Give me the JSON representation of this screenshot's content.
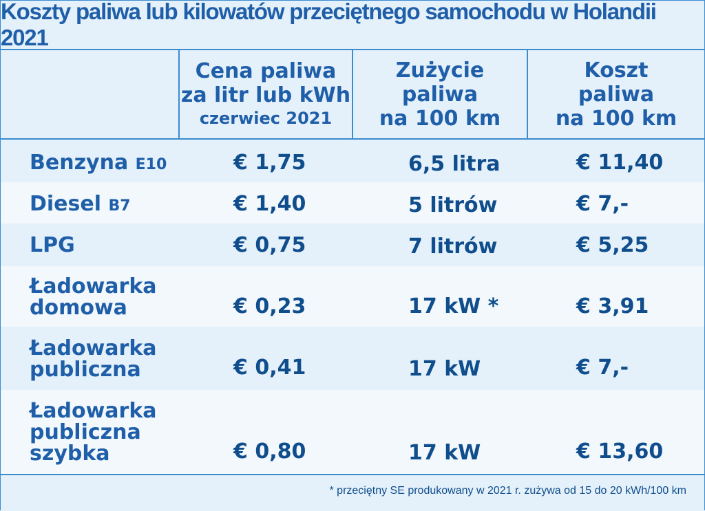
{
  "title": "Koszty paliwa lub kilowatów przeciętnego samochodu w Holandii 2021",
  "headers": {
    "price_line1": "Cena paliwa",
    "price_line2": "za litr lub kWh",
    "price_line3": "czerwiec 2021",
    "use_line1": "Zużycie",
    "use_line2": "paliwa",
    "use_line3": "na 100 km",
    "cost_line1": "Koszt",
    "cost_line2": "paliwa",
    "cost_line3": "na 100 km"
  },
  "rows": [
    {
      "label1": "Benzyna",
      "label_sub": "E10",
      "price": "€ 1,75",
      "use": "6,5 litra",
      "cost": "€ 11,40"
    },
    {
      "label1": "Diesel",
      "label_sub": "B7",
      "price": "€ 1,40",
      "use": "5 litrów",
      "cost": "€ 7,-"
    },
    {
      "label1": "LPG",
      "price": "€ 0,75",
      "use": "7 litrów",
      "cost": "€ 5,25"
    },
    {
      "label1": "Ładowarka",
      "label2": "domowa",
      "price": "€ 0,23",
      "use": "17 kW *",
      "cost": "€ 3,91"
    },
    {
      "label1": "Ładowarka",
      "label2": "publiczna",
      "price": "€ 0,41",
      "use": "17 kW",
      "cost": "€ 7,-"
    },
    {
      "label1": "Ładowarka",
      "label2": "publiczna",
      "label3": "szybka",
      "price": "€ 0,80",
      "use": "17 kW",
      "cost": "€ 13,60"
    }
  ],
  "footnote": "* przeciętny SE produkowany w 2021 r. zużywa od 15 do 20 kWh/100 km"
}
